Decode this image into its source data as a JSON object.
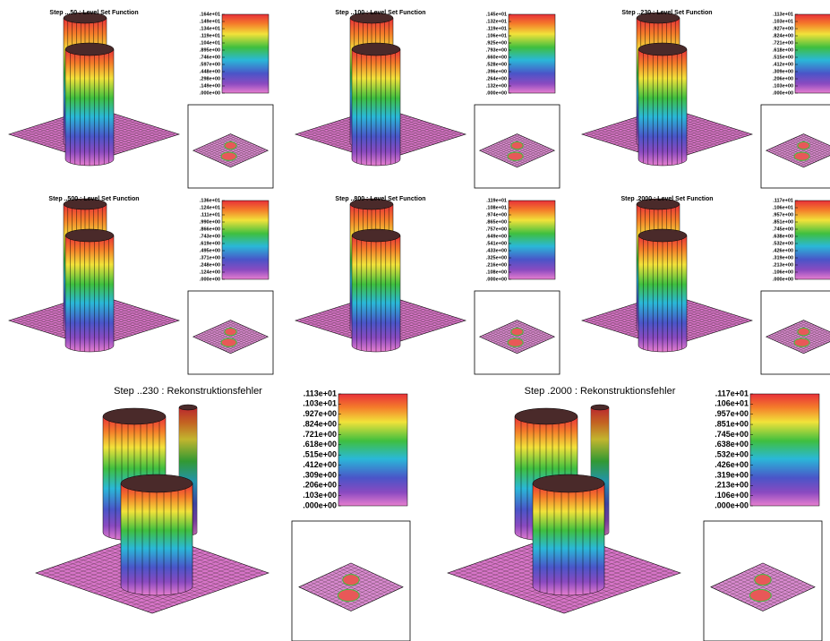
{
  "panels": [
    {
      "title": "Step ...50 : Level Set Function",
      "colorbar": [
        ".164e+01",
        ".149e+01",
        ".134e+01",
        ".119e+01",
        ".104e+01",
        ".895e+00",
        ".746e+00",
        ".597e+00",
        ".448e+00",
        ".298e+00",
        ".149e+00",
        ".000e+00"
      ]
    },
    {
      "title": "Step ..100 : Level Set Function",
      "colorbar": [
        ".145e+01",
        ".132e+01",
        ".119e+01",
        ".106e+01",
        ".925e+00",
        ".793e+00",
        ".660e+00",
        ".528e+00",
        ".396e+00",
        ".264e+00",
        ".132e+00",
        ".000e+00"
      ]
    },
    {
      "title": "Step ..230 : Level Set Function",
      "colorbar": [
        ".113e+01",
        ".103e+01",
        ".927e+00",
        ".824e+00",
        ".721e+00",
        ".618e+00",
        ".515e+00",
        ".412e+00",
        ".309e+00",
        ".206e+00",
        ".103e+00",
        ".000e+00"
      ]
    },
    {
      "title": "Step ..500 : Level Set Function",
      "colorbar": [
        ".136e+01",
        ".124e+01",
        ".111e+01",
        ".990e+00",
        ".866e+00",
        ".743e+00",
        ".619e+00",
        ".495e+00",
        ".371e+00",
        ".248e+00",
        ".124e+00",
        ".000e+00"
      ]
    },
    {
      "title": "Step ..800 : Level Set Function",
      "colorbar": [
        ".119e+01",
        ".108e+01",
        ".974e+00",
        ".865e+00",
        ".757e+00",
        ".649e+00",
        ".541e+00",
        ".433e+00",
        ".325e+00",
        ".216e+00",
        ".108e+00",
        ".000e+00"
      ]
    },
    {
      "title": "Step .2000 : Level Set Function",
      "colorbar": [
        ".117e+01",
        ".106e+01",
        ".957e+00",
        ".851e+00",
        ".745e+00",
        ".638e+00",
        ".532e+00",
        ".426e+00",
        ".319e+00",
        ".213e+00",
        ".106e+00",
        ".000e+00"
      ]
    },
    {
      "title": "Step ..230 : Rekonstruktionsfehler",
      "colorbar": [
        ".113e+01",
        ".103e+01",
        ".927e+00",
        ".824e+00",
        ".721e+00",
        ".618e+00",
        ".515e+00",
        ".412e+00",
        ".309e+00",
        ".206e+00",
        ".103e+00",
        ".000e+00"
      ]
    },
    {
      "title": "Step .2000 : Rekonstruktionsfehler",
      "colorbar": [
        ".117e+01",
        ".106e+01",
        ".957e+00",
        ".851e+00",
        ".745e+00",
        ".638e+00",
        ".532e+00",
        ".426e+00",
        ".319e+00",
        ".213e+00",
        ".106e+00",
        ".000e+00"
      ]
    }
  ]
}
